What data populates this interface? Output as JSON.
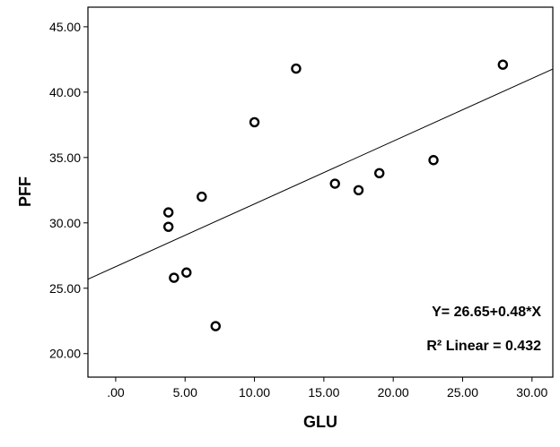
{
  "chart_data": {
    "type": "scatter",
    "title": "",
    "xlabel": "GLU",
    "ylabel": "PFF",
    "xlim": [
      -2,
      31.5
    ],
    "ylim": [
      18.2,
      46.5
    ],
    "x_ticks": [
      0,
      5,
      10,
      15,
      20,
      25,
      30
    ],
    "x_tick_labels": [
      ".00",
      "5.00",
      "10.00",
      "15.00",
      "20.00",
      "25.00",
      "30.00"
    ],
    "y_ticks": [
      20,
      25,
      30,
      35,
      40,
      45
    ],
    "y_tick_labels": [
      "20.00",
      "25.00",
      "30.00",
      "35.00",
      "40.00",
      "45.00"
    ],
    "grid": false,
    "points": [
      {
        "x": 3.8,
        "y": 30.8
      },
      {
        "x": 3.8,
        "y": 29.7
      },
      {
        "x": 4.2,
        "y": 25.8
      },
      {
        "x": 5.1,
        "y": 26.2
      },
      {
        "x": 6.2,
        "y": 32.0
      },
      {
        "x": 7.2,
        "y": 22.1
      },
      {
        "x": 10.0,
        "y": 37.7
      },
      {
        "x": 13.0,
        "y": 41.8
      },
      {
        "x": 15.8,
        "y": 33.0
      },
      {
        "x": 17.5,
        "y": 32.5
      },
      {
        "x": 19.0,
        "y": 33.8
      },
      {
        "x": 22.9,
        "y": 34.8
      },
      {
        "x": 27.9,
        "y": 42.1
      }
    ],
    "fit_line": {
      "intercept": 26.65,
      "slope": 0.48
    },
    "annotations": [
      "Y= 26.65+0.48*X",
      "R² Linear = 0.432"
    ]
  }
}
